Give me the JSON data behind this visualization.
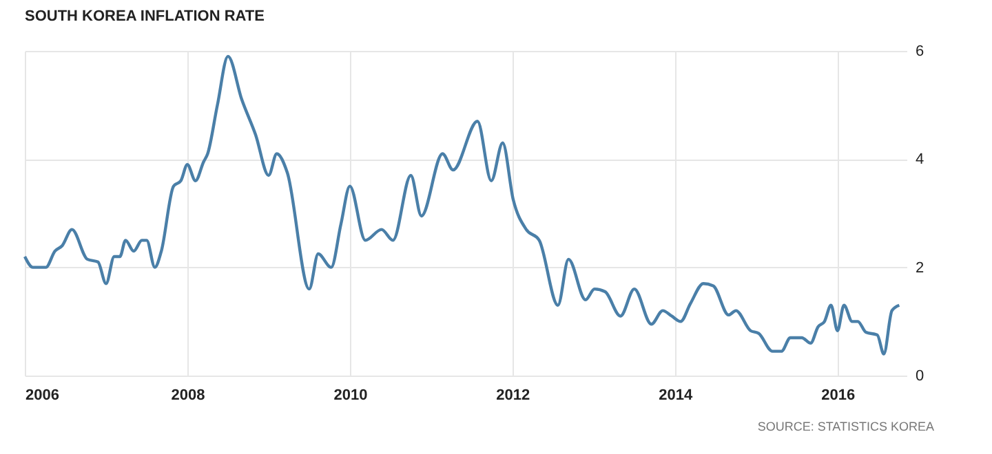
{
  "chart_data": {
    "type": "line",
    "title": "SOUTH KOREA INFLATION RATE",
    "annotations": [
      "SOURCE: STATISTICS KOREA"
    ],
    "x": [
      2006.0,
      2006.1,
      2006.26,
      2006.37,
      2006.46,
      2006.58,
      2006.77,
      2006.9,
      2007.0,
      2007.1,
      2007.17,
      2007.24,
      2007.34,
      2007.44,
      2007.5,
      2007.6,
      2007.68,
      2007.83,
      2007.92,
      2008.0,
      2008.1,
      2008.2,
      2008.25,
      2008.37,
      2008.5,
      2008.67,
      2008.84,
      2009.0,
      2009.1,
      2009.23,
      2009.5,
      2009.61,
      2009.77,
      2009.89,
      2010.0,
      2010.19,
      2010.39,
      2010.53,
      2010.75,
      2010.88,
      2011.14,
      2011.27,
      2011.57,
      2011.74,
      2011.88,
      2012.01,
      2012.17,
      2012.33,
      2012.56,
      2012.69,
      2012.9,
      2013.01,
      2013.14,
      2013.33,
      2013.5,
      2013.71,
      2013.85,
      2013.96,
      2014.07,
      2014.19,
      2014.35,
      2014.47,
      2014.66,
      2014.75,
      2014.93,
      2015.03,
      2015.2,
      2015.31,
      2015.42,
      2015.56,
      2015.67,
      2015.76,
      2015.84,
      2015.92,
      2016.0,
      2016.08,
      2016.18,
      2016.25,
      2016.35,
      2016.49,
      2016.57,
      2016.67,
      2016.76
    ],
    "series": [
      {
        "color": "#4a7fa8",
        "values": [
          2.2,
          2.0,
          2.0,
          2.3,
          2.4,
          2.7,
          2.15,
          2.1,
          1.7,
          2.2,
          2.2,
          2.5,
          2.3,
          2.5,
          2.5,
          2.0,
          2.3,
          3.5,
          3.6,
          3.9,
          3.6,
          3.95,
          4.1,
          5.0,
          5.9,
          5.1,
          4.45,
          3.7,
          4.1,
          3.75,
          1.6,
          2.25,
          2.0,
          2.8,
          3.5,
          2.5,
          2.7,
          2.5,
          3.7,
          2.95,
          4.1,
          3.8,
          4.7,
          3.6,
          4.3,
          3.25,
          2.7,
          2.5,
          1.3,
          2.15,
          1.4,
          1.6,
          1.55,
          1.1,
          1.6,
          0.95,
          1.2,
          1.1,
          1.0,
          1.33,
          1.7,
          1.66,
          1.12,
          1.2,
          0.83,
          0.78,
          0.45,
          0.45,
          0.7,
          0.7,
          0.6,
          0.9,
          1.0,
          1.3,
          0.83,
          1.3,
          1.0,
          1.0,
          0.8,
          0.75,
          0.4,
          1.2,
          1.3
        ]
      }
    ],
    "xlim": [
      2006,
      2016.85
    ],
    "xticks": [
      2006,
      2008,
      2010,
      2012,
      2014,
      2016
    ],
    "ylim": [
      0,
      6
    ],
    "yticks": [
      0,
      2,
      4,
      6
    ],
    "grid": true,
    "line_style": "solid",
    "marker": "none"
  }
}
